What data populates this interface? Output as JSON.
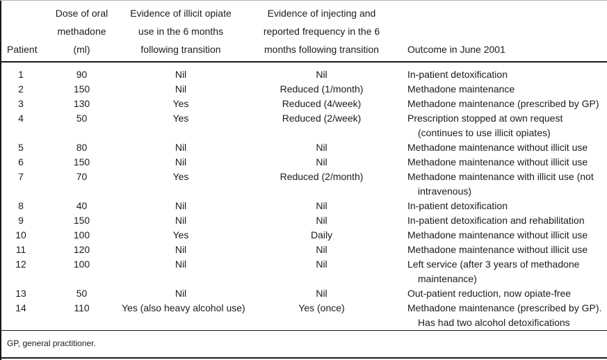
{
  "table": {
    "header": {
      "col1": "Patient",
      "col2_lines": [
        "Dose of oral",
        "methadone",
        "(ml)"
      ],
      "col3_lines": [
        "Evidence of illicit opiate",
        "use in the 6 months",
        "following transition"
      ],
      "col4_lines": [
        "Evidence of injecting and",
        "reported frequency in the 6",
        "months following transition"
      ],
      "col5": "Outcome in June 2001"
    },
    "rows": [
      {
        "patient": "1",
        "dose": "90",
        "opiate": "Nil",
        "injecting": "Nil",
        "outcome": [
          "In-patient detoxification"
        ]
      },
      {
        "patient": "2",
        "dose": "150",
        "opiate": "Nil",
        "injecting": "Reduced (1/month)",
        "outcome": [
          "Methadone maintenance"
        ]
      },
      {
        "patient": "3",
        "dose": "130",
        "opiate": "Yes",
        "injecting": "Reduced (4/week)",
        "outcome": [
          "Methadone maintenance (prescribed by GP)"
        ]
      },
      {
        "patient": "4",
        "dose": "50",
        "opiate": "Yes",
        "injecting": "Reduced (2/week)",
        "outcome": [
          "Prescription stopped at own request",
          "(continues to use illicit opiates)"
        ]
      },
      {
        "patient": "5",
        "dose": "80",
        "opiate": "Nil",
        "injecting": "Nil",
        "outcome": [
          "Methadone maintenance without illicit use"
        ]
      },
      {
        "patient": "6",
        "dose": "150",
        "opiate": "Nil",
        "injecting": "Nil",
        "outcome": [
          "Methadone maintenance without illicit use"
        ]
      },
      {
        "patient": "7",
        "dose": "70",
        "opiate": "Yes",
        "injecting": "Reduced (2/month)",
        "outcome": [
          "Methadone maintenance with illicit use (not",
          "intravenous)"
        ]
      },
      {
        "patient": "8",
        "dose": "40",
        "opiate": "Nil",
        "injecting": "Nil",
        "outcome": [
          "In-patient detoxification"
        ]
      },
      {
        "patient": "9",
        "dose": "150",
        "opiate": "Nil",
        "injecting": "Nil",
        "outcome": [
          "In-patient detoxification and rehabilitation"
        ]
      },
      {
        "patient": "10",
        "dose": "100",
        "opiate": "Yes",
        "injecting": "Daily",
        "outcome": [
          "Methadone maintenance without illicit use"
        ]
      },
      {
        "patient": "11",
        "dose": "120",
        "opiate": "Nil",
        "injecting": "Nil",
        "outcome": [
          "Methadone maintenance without illicit use"
        ]
      },
      {
        "patient": "12",
        "dose": "100",
        "opiate": "Nil",
        "injecting": "Nil",
        "outcome": [
          "Left service (after 3 years of methadone",
          "maintenance)"
        ]
      },
      {
        "patient": "13",
        "dose": "50",
        "opiate": "Nil",
        "injecting": "Nil",
        "outcome": [
          "Out-patient reduction, now opiate-free"
        ]
      },
      {
        "patient": "14",
        "dose": "110",
        "opiate": "Yes (also heavy alcohol use)",
        "injecting": "Yes (once)",
        "outcome": [
          "Methadone maintenance (prescribed by GP).",
          "Has had two alcohol detoxifications"
        ]
      }
    ],
    "footnote": "GP, general practitioner."
  }
}
